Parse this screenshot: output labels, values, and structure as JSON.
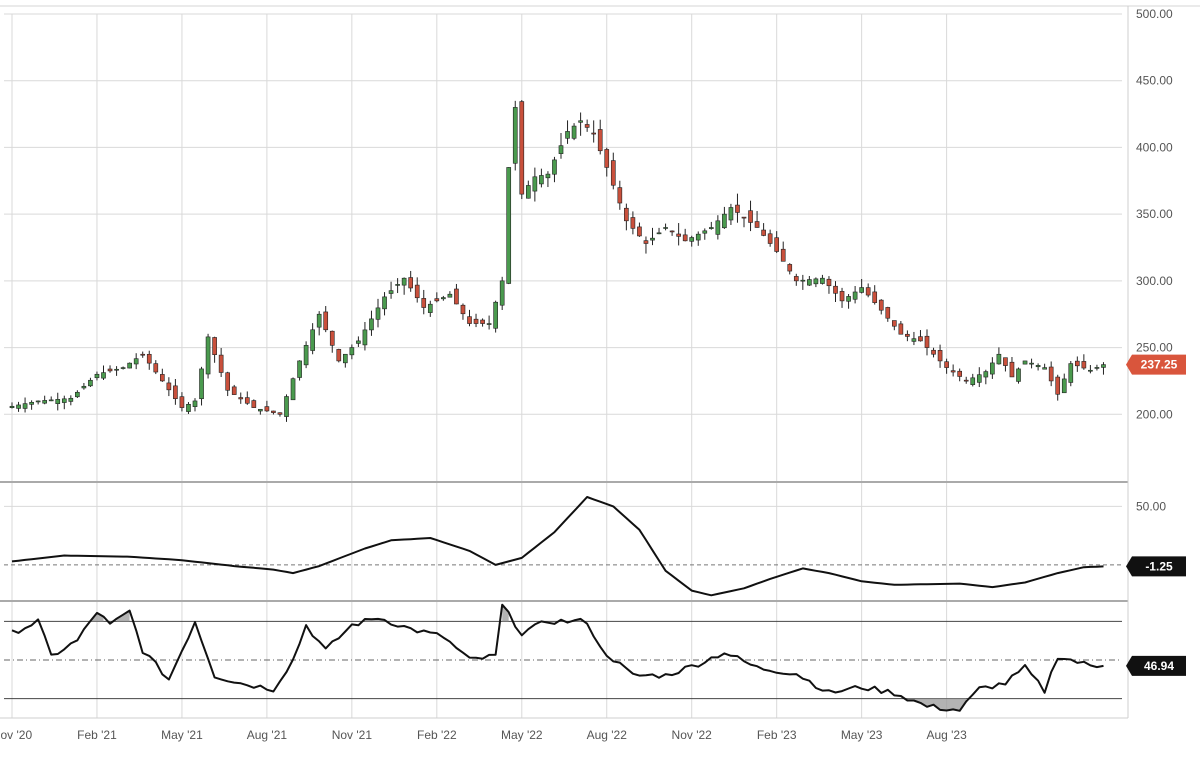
{
  "chart_data": [
    {
      "type": "candlestick",
      "panel": "price",
      "ylim": [
        150,
        500
      ],
      "yticks": [
        "500.00",
        "450.00",
        "400.00",
        "350.00",
        "300.00",
        "250.00",
        "200.00"
      ],
      "ytick_values": [
        500,
        450,
        400,
        350,
        300,
        250,
        200
      ],
      "last_value_label": "237.25",
      "last_value": 237.25,
      "colors": {
        "up": "#4a9a4e",
        "down": "#c9503c",
        "wick": "#222222",
        "tag": "#d9553c"
      },
      "anchors": [
        {
          "t": 0,
          "v": 206
        },
        {
          "t": 4,
          "v": 210
        },
        {
          "t": 9,
          "v": 212
        },
        {
          "t": 13,
          "v": 230
        },
        {
          "t": 17,
          "v": 235
        },
        {
          "t": 20,
          "v": 245
        },
        {
          "t": 23,
          "v": 225
        },
        {
          "t": 26,
          "v": 205
        },
        {
          "t": 28,
          "v": 210
        },
        {
          "t": 30,
          "v": 258
        },
        {
          "t": 33,
          "v": 218
        },
        {
          "t": 37,
          "v": 205
        },
        {
          "t": 41,
          "v": 200
        },
        {
          "t": 44,
          "v": 240
        },
        {
          "t": 47,
          "v": 275
        },
        {
          "t": 50,
          "v": 240
        },
        {
          "t": 53,
          "v": 255
        },
        {
          "t": 57,
          "v": 288
        },
        {
          "t": 60,
          "v": 302
        },
        {
          "t": 63,
          "v": 280
        },
        {
          "t": 67,
          "v": 290
        },
        {
          "t": 70,
          "v": 268
        },
        {
          "t": 73,
          "v": 268
        },
        {
          "t": 75,
          "v": 300
        },
        {
          "t": 76,
          "v": 385
        },
        {
          "t": 77,
          "v": 430
        },
        {
          "t": 78,
          "v": 365
        },
        {
          "t": 80,
          "v": 378
        },
        {
          "t": 82,
          "v": 380
        },
        {
          "t": 85,
          "v": 412
        },
        {
          "t": 87,
          "v": 420
        },
        {
          "t": 89,
          "v": 410
        },
        {
          "t": 91,
          "v": 385
        },
        {
          "t": 94,
          "v": 345
        },
        {
          "t": 97,
          "v": 328
        },
        {
          "t": 100,
          "v": 340
        },
        {
          "t": 103,
          "v": 330
        },
        {
          "t": 107,
          "v": 340
        },
        {
          "t": 110,
          "v": 355
        },
        {
          "t": 114,
          "v": 340
        },
        {
          "t": 117,
          "v": 322
        },
        {
          "t": 120,
          "v": 300
        },
        {
          "t": 124,
          "v": 302
        },
        {
          "t": 127,
          "v": 285
        },
        {
          "t": 130,
          "v": 295
        },
        {
          "t": 133,
          "v": 278
        },
        {
          "t": 136,
          "v": 260
        },
        {
          "t": 139,
          "v": 255
        },
        {
          "t": 143,
          "v": 235
        },
        {
          "t": 146,
          "v": 225
        },
        {
          "t": 149,
          "v": 232
        },
        {
          "t": 151,
          "v": 245
        },
        {
          "t": 153,
          "v": 228
        },
        {
          "t": 155,
          "v": 240
        },
        {
          "t": 158,
          "v": 235
        },
        {
          "t": 160,
          "v": 215
        },
        {
          "t": 162,
          "v": 238
        },
        {
          "t": 165,
          "v": 233
        },
        {
          "t": 167,
          "v": 237.25
        }
      ]
    },
    {
      "type": "line",
      "panel": "momentum",
      "ylim": [
        -30,
        70
      ],
      "yticks": [
        "50.00"
      ],
      "ytick_values": [
        50
      ],
      "reference": 0,
      "last_value_label": "-1.25",
      "last_value": -1.25,
      "colors": {
        "line": "#111111",
        "tag": "#111111"
      },
      "anchors": [
        {
          "t": 0,
          "v": 3
        },
        {
          "t": 8,
          "v": 8
        },
        {
          "t": 18,
          "v": 7
        },
        {
          "t": 26,
          "v": 4
        },
        {
          "t": 34,
          "v": -1
        },
        {
          "t": 40,
          "v": -4
        },
        {
          "t": 43,
          "v": -7
        },
        {
          "t": 47,
          "v": -1
        },
        {
          "t": 54,
          "v": 14
        },
        {
          "t": 58,
          "v": 21
        },
        {
          "t": 64,
          "v": 23
        },
        {
          "t": 70,
          "v": 12
        },
        {
          "t": 74,
          "v": 0
        },
        {
          "t": 78,
          "v": 6
        },
        {
          "t": 83,
          "v": 28
        },
        {
          "t": 88,
          "v": 58
        },
        {
          "t": 92,
          "v": 50
        },
        {
          "t": 96,
          "v": 30
        },
        {
          "t": 100,
          "v": -5
        },
        {
          "t": 104,
          "v": -22
        },
        {
          "t": 107,
          "v": -26
        },
        {
          "t": 112,
          "v": -20
        },
        {
          "t": 116,
          "v": -12
        },
        {
          "t": 121,
          "v": -3
        },
        {
          "t": 125,
          "v": -7
        },
        {
          "t": 130,
          "v": -14
        },
        {
          "t": 135,
          "v": -17
        },
        {
          "t": 145,
          "v": -16
        },
        {
          "t": 150,
          "v": -19
        },
        {
          "t": 155,
          "v": -15
        },
        {
          "t": 160,
          "v": -7
        },
        {
          "t": 164,
          "v": -2
        },
        {
          "t": 167,
          "v": -1.25
        }
      ]
    },
    {
      "type": "line",
      "panel": "rsi",
      "ylim": [
        20,
        80
      ],
      "upper_band": 70,
      "lower_band": 30,
      "midline": 50,
      "last_value_label": "46.94",
      "last_value": 46.94,
      "colors": {
        "line": "#111111",
        "fill": "#9a9a9a",
        "tag": "#111111"
      },
      "anchors": [
        {
          "t": 0,
          "v": 64
        },
        {
          "t": 4,
          "v": 70
        },
        {
          "t": 6,
          "v": 52
        },
        {
          "t": 10,
          "v": 60
        },
        {
          "t": 13,
          "v": 75
        },
        {
          "t": 15,
          "v": 68
        },
        {
          "t": 18,
          "v": 75
        },
        {
          "t": 20,
          "v": 55
        },
        {
          "t": 24,
          "v": 40
        },
        {
          "t": 28,
          "v": 70
        },
        {
          "t": 31,
          "v": 42
        },
        {
          "t": 35,
          "v": 38
        },
        {
          "t": 40,
          "v": 35
        },
        {
          "t": 43,
          "v": 50
        },
        {
          "t": 45,
          "v": 68
        },
        {
          "t": 48,
          "v": 55
        },
        {
          "t": 52,
          "v": 68
        },
        {
          "t": 56,
          "v": 72
        },
        {
          "t": 61,
          "v": 66
        },
        {
          "t": 66,
          "v": 62
        },
        {
          "t": 70,
          "v": 50
        },
        {
          "t": 74,
          "v": 52
        },
        {
          "t": 75,
          "v": 78
        },
        {
          "t": 78,
          "v": 64
        },
        {
          "t": 82,
          "v": 70
        },
        {
          "t": 88,
          "v": 70
        },
        {
          "t": 90,
          "v": 56
        },
        {
          "t": 95,
          "v": 42
        },
        {
          "t": 100,
          "v": 42
        },
        {
          "t": 105,
          "v": 48
        },
        {
          "t": 109,
          "v": 54
        },
        {
          "t": 114,
          "v": 46
        },
        {
          "t": 120,
          "v": 43
        },
        {
          "t": 125,
          "v": 33
        },
        {
          "t": 130,
          "v": 36
        },
        {
          "t": 135,
          "v": 33
        },
        {
          "t": 140,
          "v": 26
        },
        {
          "t": 145,
          "v": 24
        },
        {
          "t": 148,
          "v": 35
        },
        {
          "t": 152,
          "v": 38
        },
        {
          "t": 155,
          "v": 46
        },
        {
          "t": 158,
          "v": 34
        },
        {
          "t": 160,
          "v": 52
        },
        {
          "t": 165,
          "v": 47
        },
        {
          "t": 167,
          "v": 46.94
        }
      ]
    }
  ],
  "x_axis": {
    "n_periods": 168,
    "ticks": [
      {
        "label": "Nov '20",
        "t": 0
      },
      {
        "label": "Feb '21",
        "t": 13
      },
      {
        "label": "May '21",
        "t": 26
      },
      {
        "label": "Aug '21",
        "t": 39
      },
      {
        "label": "Nov '21",
        "t": 52
      },
      {
        "label": "Feb '22",
        "t": 65
      },
      {
        "label": "May '22",
        "t": 78
      },
      {
        "label": "Aug '22",
        "t": 91
      },
      {
        "label": "Nov '22",
        "t": 104
      },
      {
        "label": "Feb '23",
        "t": 117
      },
      {
        "label": "May '23",
        "t": 130
      },
      {
        "label": "Aug '23",
        "t": 143
      }
    ]
  }
}
